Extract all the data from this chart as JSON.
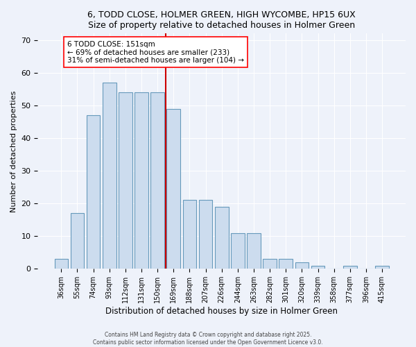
{
  "title": "6, TODD CLOSE, HOLMER GREEN, HIGH WYCOMBE, HP15 6UX",
  "subtitle": "Size of property relative to detached houses in Holmer Green",
  "xlabel": "Distribution of detached houses by size in Holmer Green",
  "ylabel": "Number of detached properties",
  "bar_color": "#ccdcee",
  "bar_edge_color": "#6699bb",
  "background_color": "#eef2fa",
  "categories": [
    "36sqm",
    "55sqm",
    "74sqm",
    "93sqm",
    "112sqm",
    "131sqm",
    "150sqm",
    "169sqm",
    "188sqm",
    "207sqm",
    "226sqm",
    "244sqm",
    "263sqm",
    "282sqm",
    "301sqm",
    "320sqm",
    "339sqm",
    "358sqm",
    "377sqm",
    "396sqm",
    "415sqm"
  ],
  "values": [
    3,
    17,
    47,
    57,
    54,
    54,
    54,
    49,
    21,
    21,
    19,
    11,
    11,
    3,
    3,
    2,
    1,
    0,
    1,
    0,
    1
  ],
  "vline_color": "#cc0000",
  "annotation_text": "6 TODD CLOSE: 151sqm\n← 69% of detached houses are smaller (233)\n31% of semi-detached houses are larger (104) →",
  "ylim": [
    0,
    72
  ],
  "yticks": [
    0,
    10,
    20,
    30,
    40,
    50,
    60,
    70
  ],
  "footer_line1": "Contains HM Land Registry data © Crown copyright and database right 2025.",
  "footer_line2": "Contains public sector information licensed under the Open Government Licence v3.0."
}
